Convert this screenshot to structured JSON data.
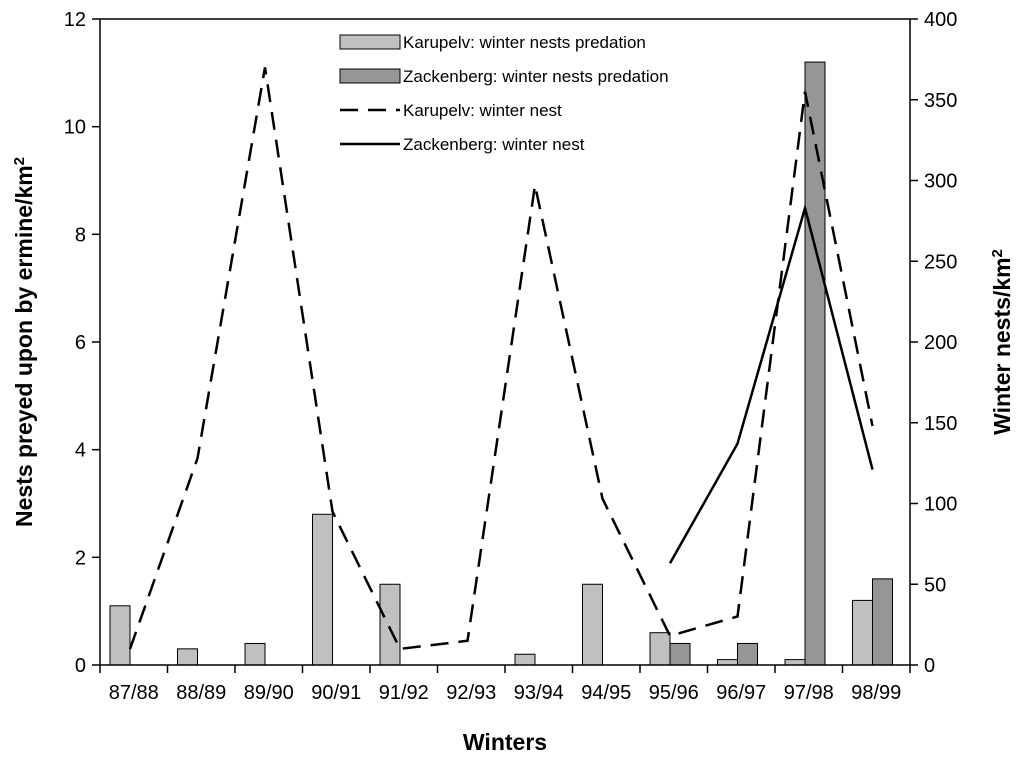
{
  "chart_data": {
    "type": "bar",
    "categories": [
      "87/88",
      "88/89",
      "89/90",
      "90/91",
      "91/92",
      "92/93",
      "93/94",
      "94/95",
      "95/96",
      "96/97",
      "97/98",
      "98/99"
    ],
    "xlabel": "Winters",
    "ylabel_left": {
      "text": "Nests preyed upon by ermine/km",
      "sup": "2"
    },
    "ylabel_right": {
      "text": "Winter nests/km",
      "sup": "2"
    },
    "ylim_left": [
      0,
      12
    ],
    "yticks_left": [
      0,
      2,
      4,
      6,
      8,
      10,
      12
    ],
    "ylim_right": [
      0,
      400
    ],
    "yticks_right": [
      0,
      50,
      100,
      150,
      200,
      250,
      300,
      350,
      400
    ],
    "grid": false,
    "legend_position": "top-center",
    "series": [
      {
        "name": "Karupelv: winter nests predation",
        "kind": "bar",
        "axis": "left",
        "color": "#c0c0c0",
        "values": [
          1.1,
          0.3,
          0.4,
          2.8,
          1.5,
          0,
          0.2,
          1.5,
          0.6,
          0.1,
          0.1,
          1.2
        ]
      },
      {
        "name": "Zackenberg: winter nests predation",
        "kind": "bar",
        "axis": "left",
        "color": "#969696",
        "values": [
          null,
          null,
          null,
          null,
          null,
          null,
          null,
          null,
          0.4,
          0.4,
          11.2,
          1.6
        ]
      },
      {
        "name": "Karupelv: winter nest",
        "kind": "line",
        "style": "dashed",
        "axis": "right",
        "color": "#000000",
        "values": [
          10,
          128,
          370,
          95,
          10,
          15,
          297,
          103,
          18,
          30,
          355,
          148
        ]
      },
      {
        "name": "Zackenberg: winter nest",
        "kind": "line",
        "style": "solid",
        "axis": "right",
        "color": "#000000",
        "values": [
          null,
          null,
          null,
          null,
          null,
          null,
          null,
          null,
          63,
          137,
          283,
          121
        ]
      }
    ]
  }
}
